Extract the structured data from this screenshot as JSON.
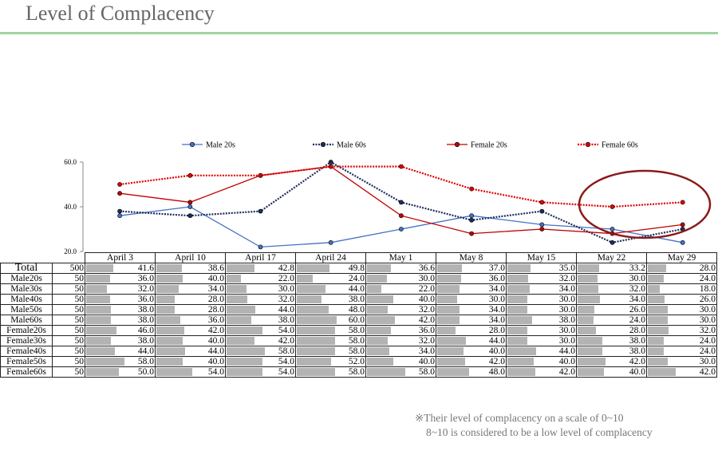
{
  "title": "Level of Complacency",
  "chart_data": {
    "type": "line",
    "categories": [
      "April 3",
      "April 10",
      "April 17",
      "April 24",
      "May 1",
      "May 8",
      "May 15",
      "May 22",
      "May 29"
    ],
    "ylim": [
      20,
      60
    ],
    "yticks": [
      "20.0",
      "40.0",
      "60.0"
    ],
    "legend_position": "top",
    "series": [
      {
        "name": "Male 20s",
        "color": "#4472c4",
        "dash": false,
        "values": [
          36,
          40,
          22,
          24,
          30,
          36,
          32,
          30,
          24
        ]
      },
      {
        "name": "Male 60s",
        "color": "#1f2d5a",
        "dash": true,
        "values": [
          38,
          36,
          38,
          60,
          42,
          34,
          38,
          24,
          30
        ]
      },
      {
        "name": "Female 20s",
        "color": "#c00000",
        "dash": false,
        "values": [
          46,
          42,
          54,
          58,
          36,
          28,
          30,
          28,
          32
        ]
      },
      {
        "name": "Female 60s",
        "color": "#e00000",
        "dash": true,
        "values": [
          50,
          54,
          54,
          58,
          58,
          48,
          42,
          40,
          42
        ]
      }
    ],
    "annotation": {
      "shape": "ellipse",
      "color": "#8b1a1a",
      "around": [
        "May 22",
        "May 29"
      ]
    }
  },
  "table": {
    "rows": [
      {
        "label": "Total",
        "n": "500",
        "values": [
          "41.6",
          "38.6",
          "42.8",
          "49.8",
          "36.6",
          "37.0",
          "35.0",
          "33.2",
          "28.0"
        ]
      },
      {
        "label": "Male20s",
        "n": "50",
        "values": [
          "36.0",
          "40.0",
          "22.0",
          "24.0",
          "30.0",
          "36.0",
          "32.0",
          "30.0",
          "24.0"
        ]
      },
      {
        "label": "Male30s",
        "n": "50",
        "values": [
          "32.0",
          "34.0",
          "30.0",
          "44.0",
          "22.0",
          "34.0",
          "34.0",
          "32.0",
          "18.0"
        ]
      },
      {
        "label": "Male40s",
        "n": "50",
        "values": [
          "36.0",
          "28.0",
          "32.0",
          "38.0",
          "40.0",
          "30.0",
          "30.0",
          "34.0",
          "26.0"
        ]
      },
      {
        "label": "Male50s",
        "n": "50",
        "values": [
          "38.0",
          "28.0",
          "44.0",
          "48.0",
          "32.0",
          "34.0",
          "30.0",
          "26.0",
          "30.0"
        ]
      },
      {
        "label": "Male60s",
        "n": "50",
        "values": [
          "38.0",
          "36.0",
          "38.0",
          "60.0",
          "42.0",
          "34.0",
          "38.0",
          "24.0",
          "30.0"
        ]
      },
      {
        "label": "Female20s",
        "n": "50",
        "values": [
          "46.0",
          "42.0",
          "54.0",
          "58.0",
          "36.0",
          "28.0",
          "30.0",
          "28.0",
          "32.0"
        ]
      },
      {
        "label": "Female30s",
        "n": "50",
        "values": [
          "38.0",
          "40.0",
          "42.0",
          "58.0",
          "32.0",
          "44.0",
          "30.0",
          "38.0",
          "24.0"
        ]
      },
      {
        "label": "Female40s",
        "n": "50",
        "values": [
          "44.0",
          "44.0",
          "58.0",
          "58.0",
          "34.0",
          "40.0",
          "44.0",
          "38.0",
          "24.0"
        ]
      },
      {
        "label": "Female50s",
        "n": "50",
        "values": [
          "58.0",
          "40.0",
          "54.0",
          "52.0",
          "40.0",
          "42.0",
          "40.0",
          "42.0",
          "30.0"
        ]
      },
      {
        "label": "Female60s",
        "n": "50",
        "values": [
          "50.0",
          "54.0",
          "54.0",
          "58.0",
          "58.0",
          "48.0",
          "42.0",
          "40.0",
          "42.0"
        ]
      }
    ]
  },
  "note": {
    "line1": "※Their level of complacency on a scale of 0~10",
    "line2": "8~10 is considered to be a low level of complacency"
  }
}
